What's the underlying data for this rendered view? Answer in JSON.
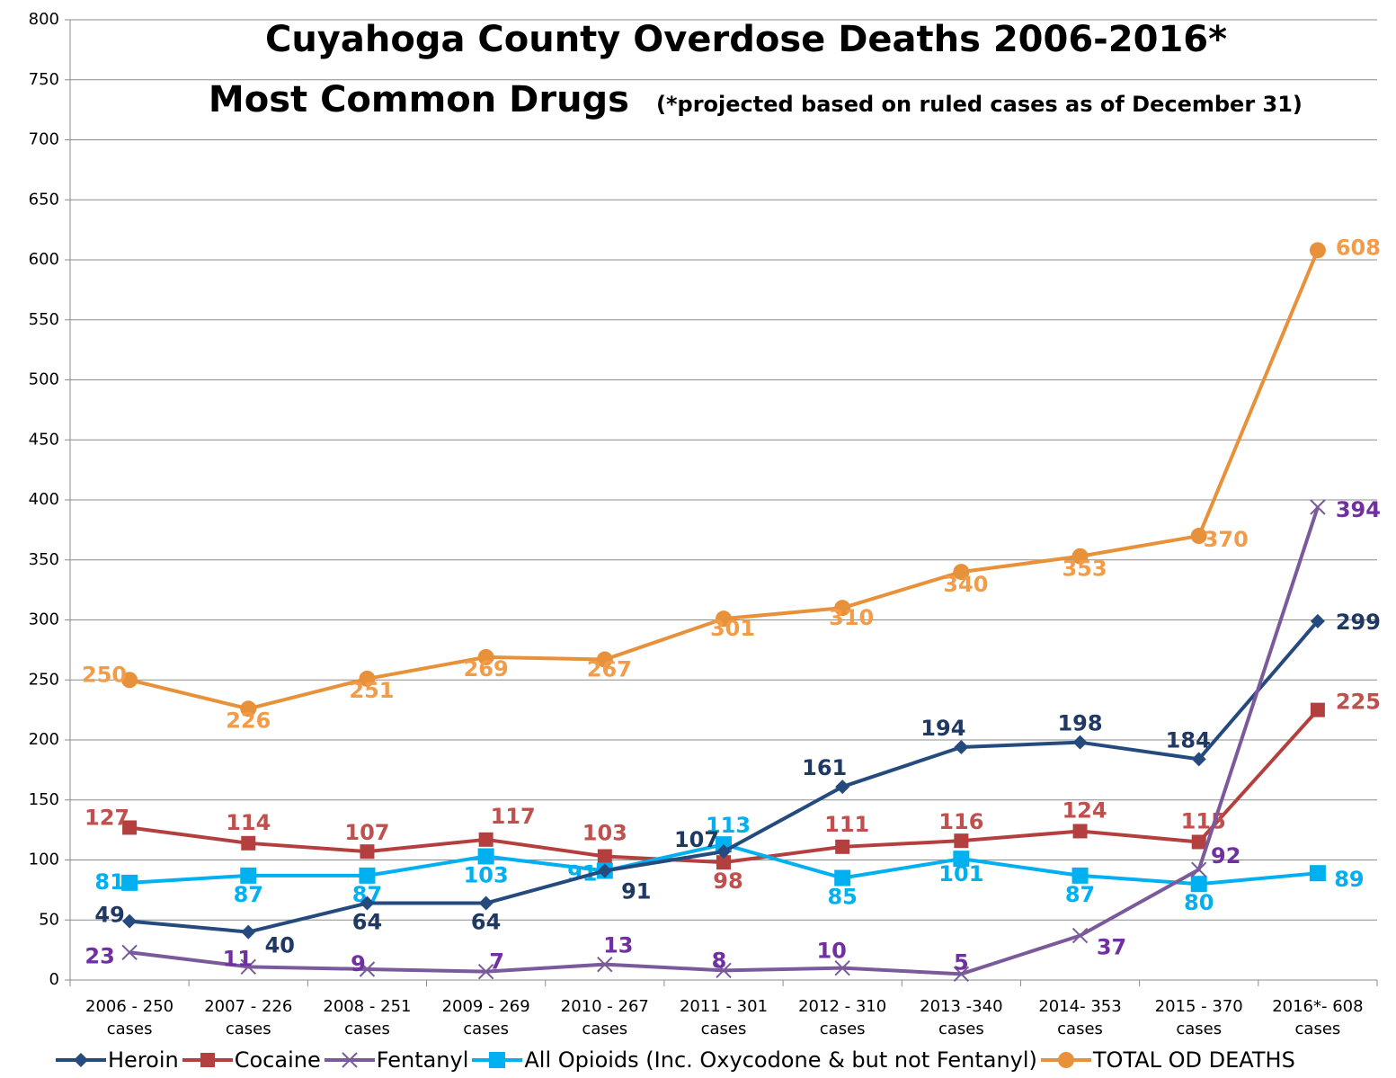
{
  "chart_data": {
    "type": "line",
    "title": "Cuyahoga County Overdose Deaths 2006-2016*",
    "subtitle": "Most Common Drugs",
    "annotation": "(*projected based on ruled cases as of December 31)",
    "categories": [
      "2006 - 250 cases",
      "2007 - 226 cases",
      "2008 - 251 cases",
      "2009 - 269 cases",
      "2010 - 267 cases",
      "2011 - 301 cases",
      "2012 - 310 cases",
      "2013 -340 cases",
      "2014- 353 cases",
      "2015 - 370 cases",
      "2016*- 608 cases"
    ],
    "series": [
      {
        "name": "Heroin",
        "color": "#254a7e",
        "label_color": "#1f3864",
        "marker": "diamond",
        "values": [
          49,
          40,
          64,
          64,
          91,
          107,
          161,
          194,
          198,
          184,
          299
        ]
      },
      {
        "name": "Cocaine",
        "color": "#b3403e",
        "label_color": "#c0504d",
        "marker": "square",
        "values": [
          127,
          114,
          107,
          117,
          103,
          98,
          111,
          116,
          124,
          115,
          225
        ]
      },
      {
        "name": "Fentanyl",
        "color": "#7a5a9a",
        "label_color": "#7030a0",
        "marker": "x",
        "values": [
          23,
          11,
          9,
          7,
          13,
          8,
          10,
          5,
          37,
          92,
          394
        ]
      },
      {
        "name": "All Opioids (Inc. Oxycodone & but not Fentanyl)",
        "color": "#00b0f0",
        "label_color": "#00b0f0",
        "marker": "square",
        "values": [
          81,
          87,
          87,
          103,
          91,
          113,
          85,
          101,
          87,
          80,
          89
        ]
      },
      {
        "name": "TOTAL OD DEATHS",
        "color": "#e8913b",
        "label_color": "#f29c4a",
        "marker": "circle",
        "values": [
          250,
          226,
          251,
          269,
          267,
          301,
          310,
          340,
          353,
          370,
          608
        ]
      }
    ],
    "ylim": [
      0,
      800
    ],
    "yticks": [
      0,
      50,
      100,
      150,
      200,
      250,
      300,
      350,
      400,
      450,
      500,
      550,
      600,
      650,
      700,
      750,
      800
    ],
    "grid": true,
    "legend": "bottom"
  }
}
